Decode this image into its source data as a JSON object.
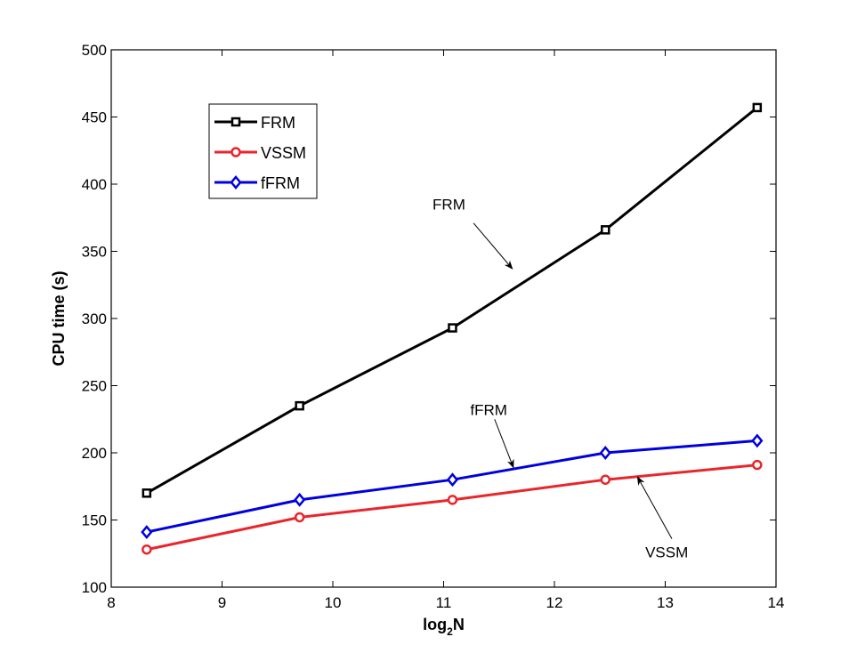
{
  "chart_data": {
    "type": "line",
    "title": "",
    "xlabel": "log",
    "xlabel_sub": "2",
    "xlabel_suffix": "N",
    "ylabel": "CPU time (s)",
    "xlim": [
      8,
      14
    ],
    "ylim": [
      100,
      500
    ],
    "xticks": [
      8,
      9,
      10,
      11,
      12,
      13,
      14
    ],
    "yticks": [
      100,
      150,
      200,
      250,
      300,
      350,
      400,
      450,
      500
    ],
    "grid": false,
    "legend_position": "top-left",
    "x": [
      8.32,
      9.7,
      11.08,
      12.46,
      13.83
    ],
    "series": [
      {
        "name": "FRM",
        "color": "#000000",
        "marker": "square",
        "values": [
          170,
          235,
          293,
          366,
          457
        ]
      },
      {
        "name": "VSSM",
        "color": "#e8262c",
        "marker": "circle",
        "values": [
          128,
          152,
          165,
          180,
          191
        ]
      },
      {
        "name": "fFRM",
        "color": "#0000e0",
        "marker": "diamond",
        "values": [
          141,
          165,
          180,
          200,
          209
        ]
      }
    ],
    "annotations": [
      {
        "text": "FRM",
        "text_at": [
          10.9,
          385
        ],
        "arrow_from": [
          11.27,
          371
        ],
        "arrow_to": [
          11.62,
          337
        ]
      },
      {
        "text": "fFRM",
        "text_at": [
          11.24,
          232
        ],
        "arrow_from": [
          11.46,
          225
        ],
        "arrow_to": [
          11.63,
          189
        ]
      },
      {
        "text": "VSSM",
        "text_at": [
          12.82,
          126
        ],
        "arrow_from": [
          13.06,
          136
        ],
        "arrow_to": [
          12.75,
          182
        ]
      }
    ]
  }
}
